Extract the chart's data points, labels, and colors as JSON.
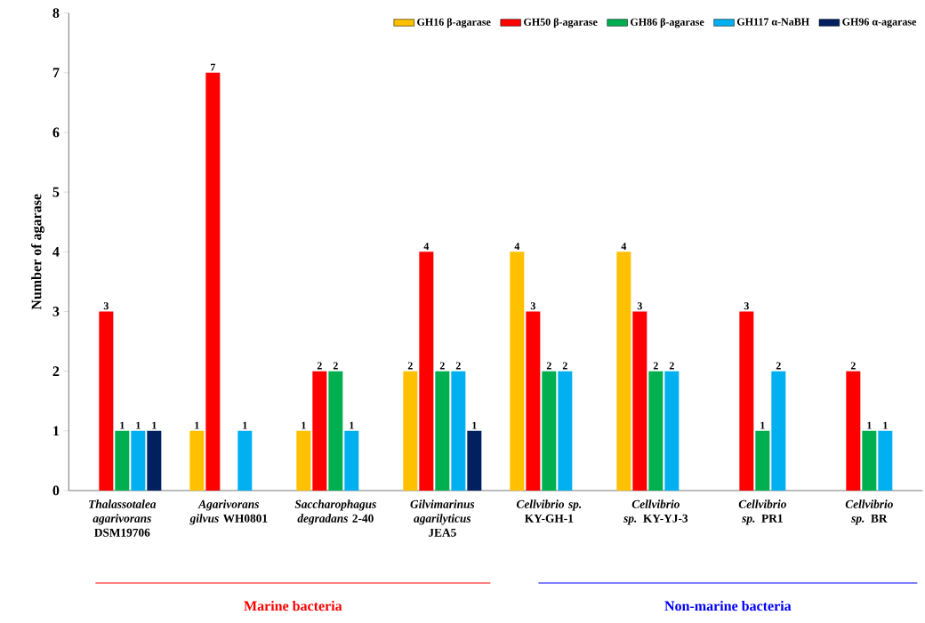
{
  "chart_data": {
    "type": "bar",
    "ylabel": "Number of agarase",
    "categories": [
      "*Thalassotalea agarivorans* DSM19706",
      "*Agarivorans gilvus* WH0801",
      "*Saccharophagus degradans* 2-40",
      "*Gilvimarinus agarilyticus* JEA5",
      "*Cellvibrio sp.* KY-GH-1",
      "*Cellvibrio sp.* KY-YJ-3",
      "*Cellvibrio sp.* PR1",
      "*Cellvibrio sp.* BR"
    ],
    "series": [
      {
        "name": "GH16 β-agarase",
        "color": "#ffc000",
        "values": [
          null,
          1,
          1,
          2,
          4,
          4,
          null,
          null
        ]
      },
      {
        "name": "GH50 β-agarase",
        "color": "#ff0000",
        "values": [
          3,
          7,
          2,
          4,
          3,
          3,
          3,
          2
        ]
      },
      {
        "name": "GH86 β-agarase",
        "color": "#00b050",
        "values": [
          1,
          null,
          2,
          2,
          2,
          2,
          1,
          1
        ]
      },
      {
        "name": "GH117 α-NaBH",
        "color": "#00b0f0",
        "values": [
          1,
          1,
          1,
          2,
          2,
          2,
          2,
          1
        ]
      },
      {
        "name": "GH96 α-agarase",
        "color": "#002060",
        "values": [
          1,
          null,
          null,
          1,
          null,
          null,
          null,
          null
        ]
      }
    ],
    "ylim": [
      0,
      8
    ],
    "yticks": [
      0,
      1,
      2,
      3,
      4,
      5,
      6,
      7,
      8
    ],
    "data_labels": true,
    "legend": "top right",
    "grid": false,
    "annotations": [
      "Marine bacteria",
      "Non-marine bacteria"
    ]
  }
}
